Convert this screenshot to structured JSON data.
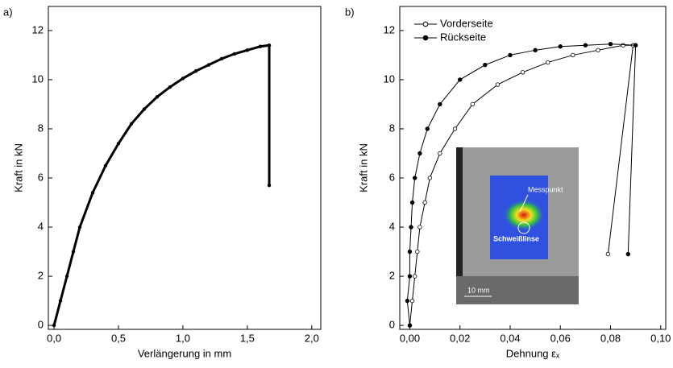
{
  "chart_data": [
    {
      "type": "line",
      "label": "a)",
      "xlabel": "Verlängerung in mm",
      "ylabel": "Kraft in kN",
      "color": "#000000",
      "marker": "filled",
      "x": [
        0,
        0.05,
        0.1,
        0.15,
        0.2,
        0.3,
        0.4,
        0.5,
        0.6,
        0.7,
        0.8,
        0.9,
        1.0,
        1.1,
        1.2,
        1.3,
        1.4,
        1.5,
        1.6,
        1.67,
        1.67
      ],
      "values": [
        0,
        1,
        2,
        3,
        4,
        5.4,
        6.5,
        7.4,
        8.2,
        8.8,
        9.3,
        9.7,
        10.05,
        10.35,
        10.6,
        10.85,
        11.05,
        11.2,
        11.35,
        11.4,
        5.7
      ],
      "xlim": [
        -0.044,
        2.07
      ],
      "ylim": [
        -0.16,
        12.98
      ],
      "xticks": [
        {
          "value": 0,
          "label": "0,0"
        },
        {
          "value": 0.5,
          "label": "0,5"
        },
        {
          "value": 1.0,
          "label": "1,0"
        },
        {
          "value": 1.5,
          "label": "1,5"
        },
        {
          "value": 2.0,
          "label": "2,0"
        }
      ],
      "yticks": [
        0,
        2,
        4,
        6,
        8,
        10,
        12
      ]
    },
    {
      "type": "line",
      "label": "b)",
      "xlabel": "Dehnung εₓ",
      "ylabel": "Kraft in kN",
      "legend": "upper left",
      "series": [
        {
          "name": "Vorderseite",
          "color": "#000000",
          "marker": "open",
          "x": [
            0,
            0.001,
            0.002,
            0.003,
            0.004,
            0.006,
            0.008,
            0.012,
            0.018,
            0.025,
            0.035,
            0.045,
            0.055,
            0.065,
            0.075,
            0.085,
            0.089,
            0.079
          ],
          "values": [
            0,
            1,
            2,
            3,
            4,
            5,
            6,
            7,
            8,
            9,
            9.8,
            10.3,
            10.7,
            11,
            11.2,
            11.4,
            11.4,
            2.9
          ]
        },
        {
          "name": "Rückseite",
          "color": "#000000",
          "marker": "filled",
          "x": [
            0,
            -0.001,
            0,
            0,
            0.0005,
            0.001,
            0.002,
            0.004,
            0.007,
            0.012,
            0.02,
            0.03,
            0.04,
            0.05,
            0.06,
            0.07,
            0.08,
            0.09,
            0.087
          ],
          "values": [
            0,
            1,
            2,
            3,
            4,
            5,
            6,
            7,
            8,
            9,
            10,
            10.6,
            11,
            11.2,
            11.35,
            11.4,
            11.45,
            11.4,
            2.9
          ]
        }
      ],
      "inset_labels": [
        "Messpunkt",
        "Schweißlinse",
        "10 mm"
      ],
      "xlim": [
        -0.004,
        0.102
      ],
      "ylim": [
        -0.16,
        12.98
      ],
      "xticks": [
        {
          "value": 0,
          "label": "0,00"
        },
        {
          "value": 0.02,
          "label": "0,02"
        },
        {
          "value": 0.04,
          "label": "0,04"
        },
        {
          "value": 0.06,
          "label": "0,06"
        },
        {
          "value": 0.08,
          "label": "0,08"
        },
        {
          "value": 0.1,
          "label": "0,10"
        }
      ],
      "yticks": [
        0,
        2,
        4,
        6,
        8,
        10,
        12
      ]
    }
  ]
}
